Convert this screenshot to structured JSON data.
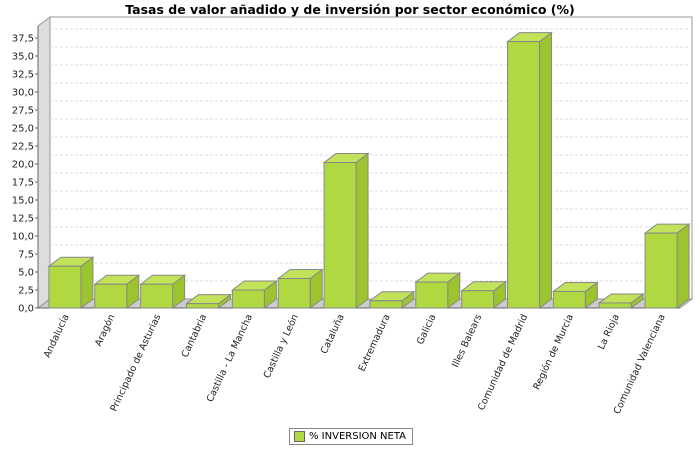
{
  "chart_data": {
    "type": "bar",
    "title": "Tasas de valor añadido y de inversión por sector económico (%)",
    "xlabel": "",
    "ylabel": "",
    "ylim": [
      0,
      37.5
    ],
    "yticks": [
      "0,0",
      "2,5",
      "5,0",
      "7,5",
      "10,0",
      "12,5",
      "15,0",
      "17,5",
      "20,0",
      "22,5",
      "25,0",
      "27,5",
      "30,0",
      "32,5",
      "35,0",
      "37,5"
    ],
    "grid": true,
    "legend_position": "bottom",
    "categories": [
      "Andalucía",
      "Aragón",
      "Principado de Asturias",
      "Cantabria",
      "Castilla - La Mancha",
      "Castilla y León",
      "Cataluña",
      "Extremadura",
      "Galicia",
      "Illes Balears",
      "Comunidad de Madrid",
      "Región de Murcia",
      "La Rioja",
      "Comunidad Valenciana"
    ],
    "series": [
      {
        "name": "% INVERSION NETA",
        "color": "#b0d840",
        "values": [
          5.8,
          3.3,
          3.3,
          0.6,
          2.5,
          4.1,
          20.2,
          1.0,
          3.6,
          2.4,
          37.0,
          2.3,
          0.7,
          10.4
        ]
      }
    ]
  }
}
